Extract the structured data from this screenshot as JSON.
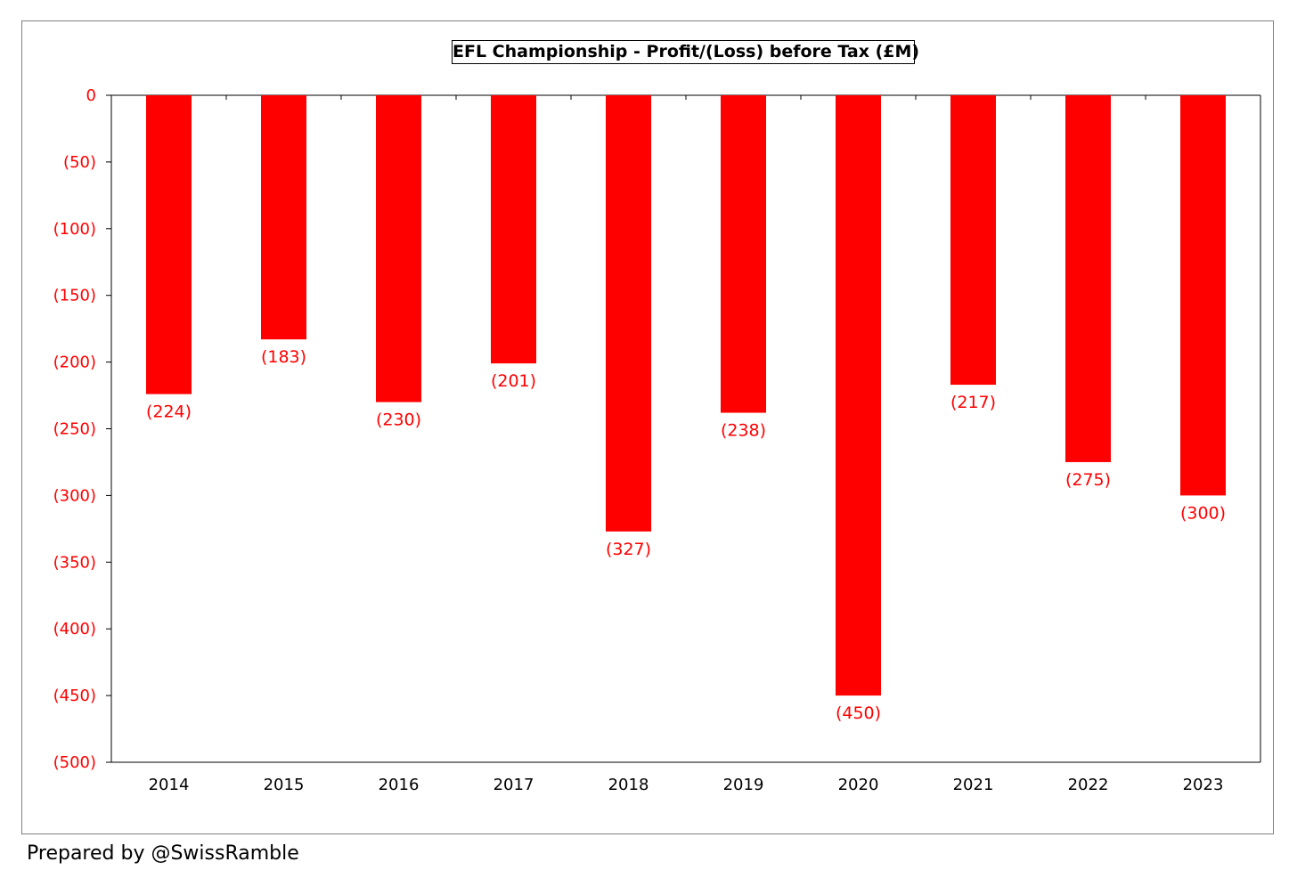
{
  "chart_data": {
    "type": "bar",
    "title": "EFL Championship - Profit/(Loss) before Tax (£M)",
    "categories": [
      "2014",
      "2015",
      "2016",
      "2017",
      "2018",
      "2019",
      "2020",
      "2021",
      "2022",
      "2023"
    ],
    "values": [
      -224,
      -183,
      -230,
      -201,
      -327,
      -238,
      -450,
      -217,
      -275,
      -300
    ],
    "data_labels": [
      "(224)",
      "(183)",
      "(230)",
      "(201)",
      "(327)",
      "(238)",
      "(450)",
      "(217)",
      "(275)",
      "(300)"
    ],
    "ylim": [
      -500,
      0
    ],
    "yticks": [
      0,
      -50,
      -100,
      -150,
      -200,
      -250,
      -300,
      -350,
      -400,
      -450,
      -500
    ],
    "ytick_labels": [
      "0",
      "(50)",
      "(100)",
      "(150)",
      "(200)",
      "(250)",
      "(300)",
      "(350)",
      "(400)",
      "(450)",
      "(500)"
    ],
    "xlabel": "",
    "ylabel": "",
    "grid": false,
    "bar_color": "#ff0000",
    "label_color": "#ff0000"
  },
  "footer": {
    "credit": "Prepared by @SwissRamble"
  }
}
